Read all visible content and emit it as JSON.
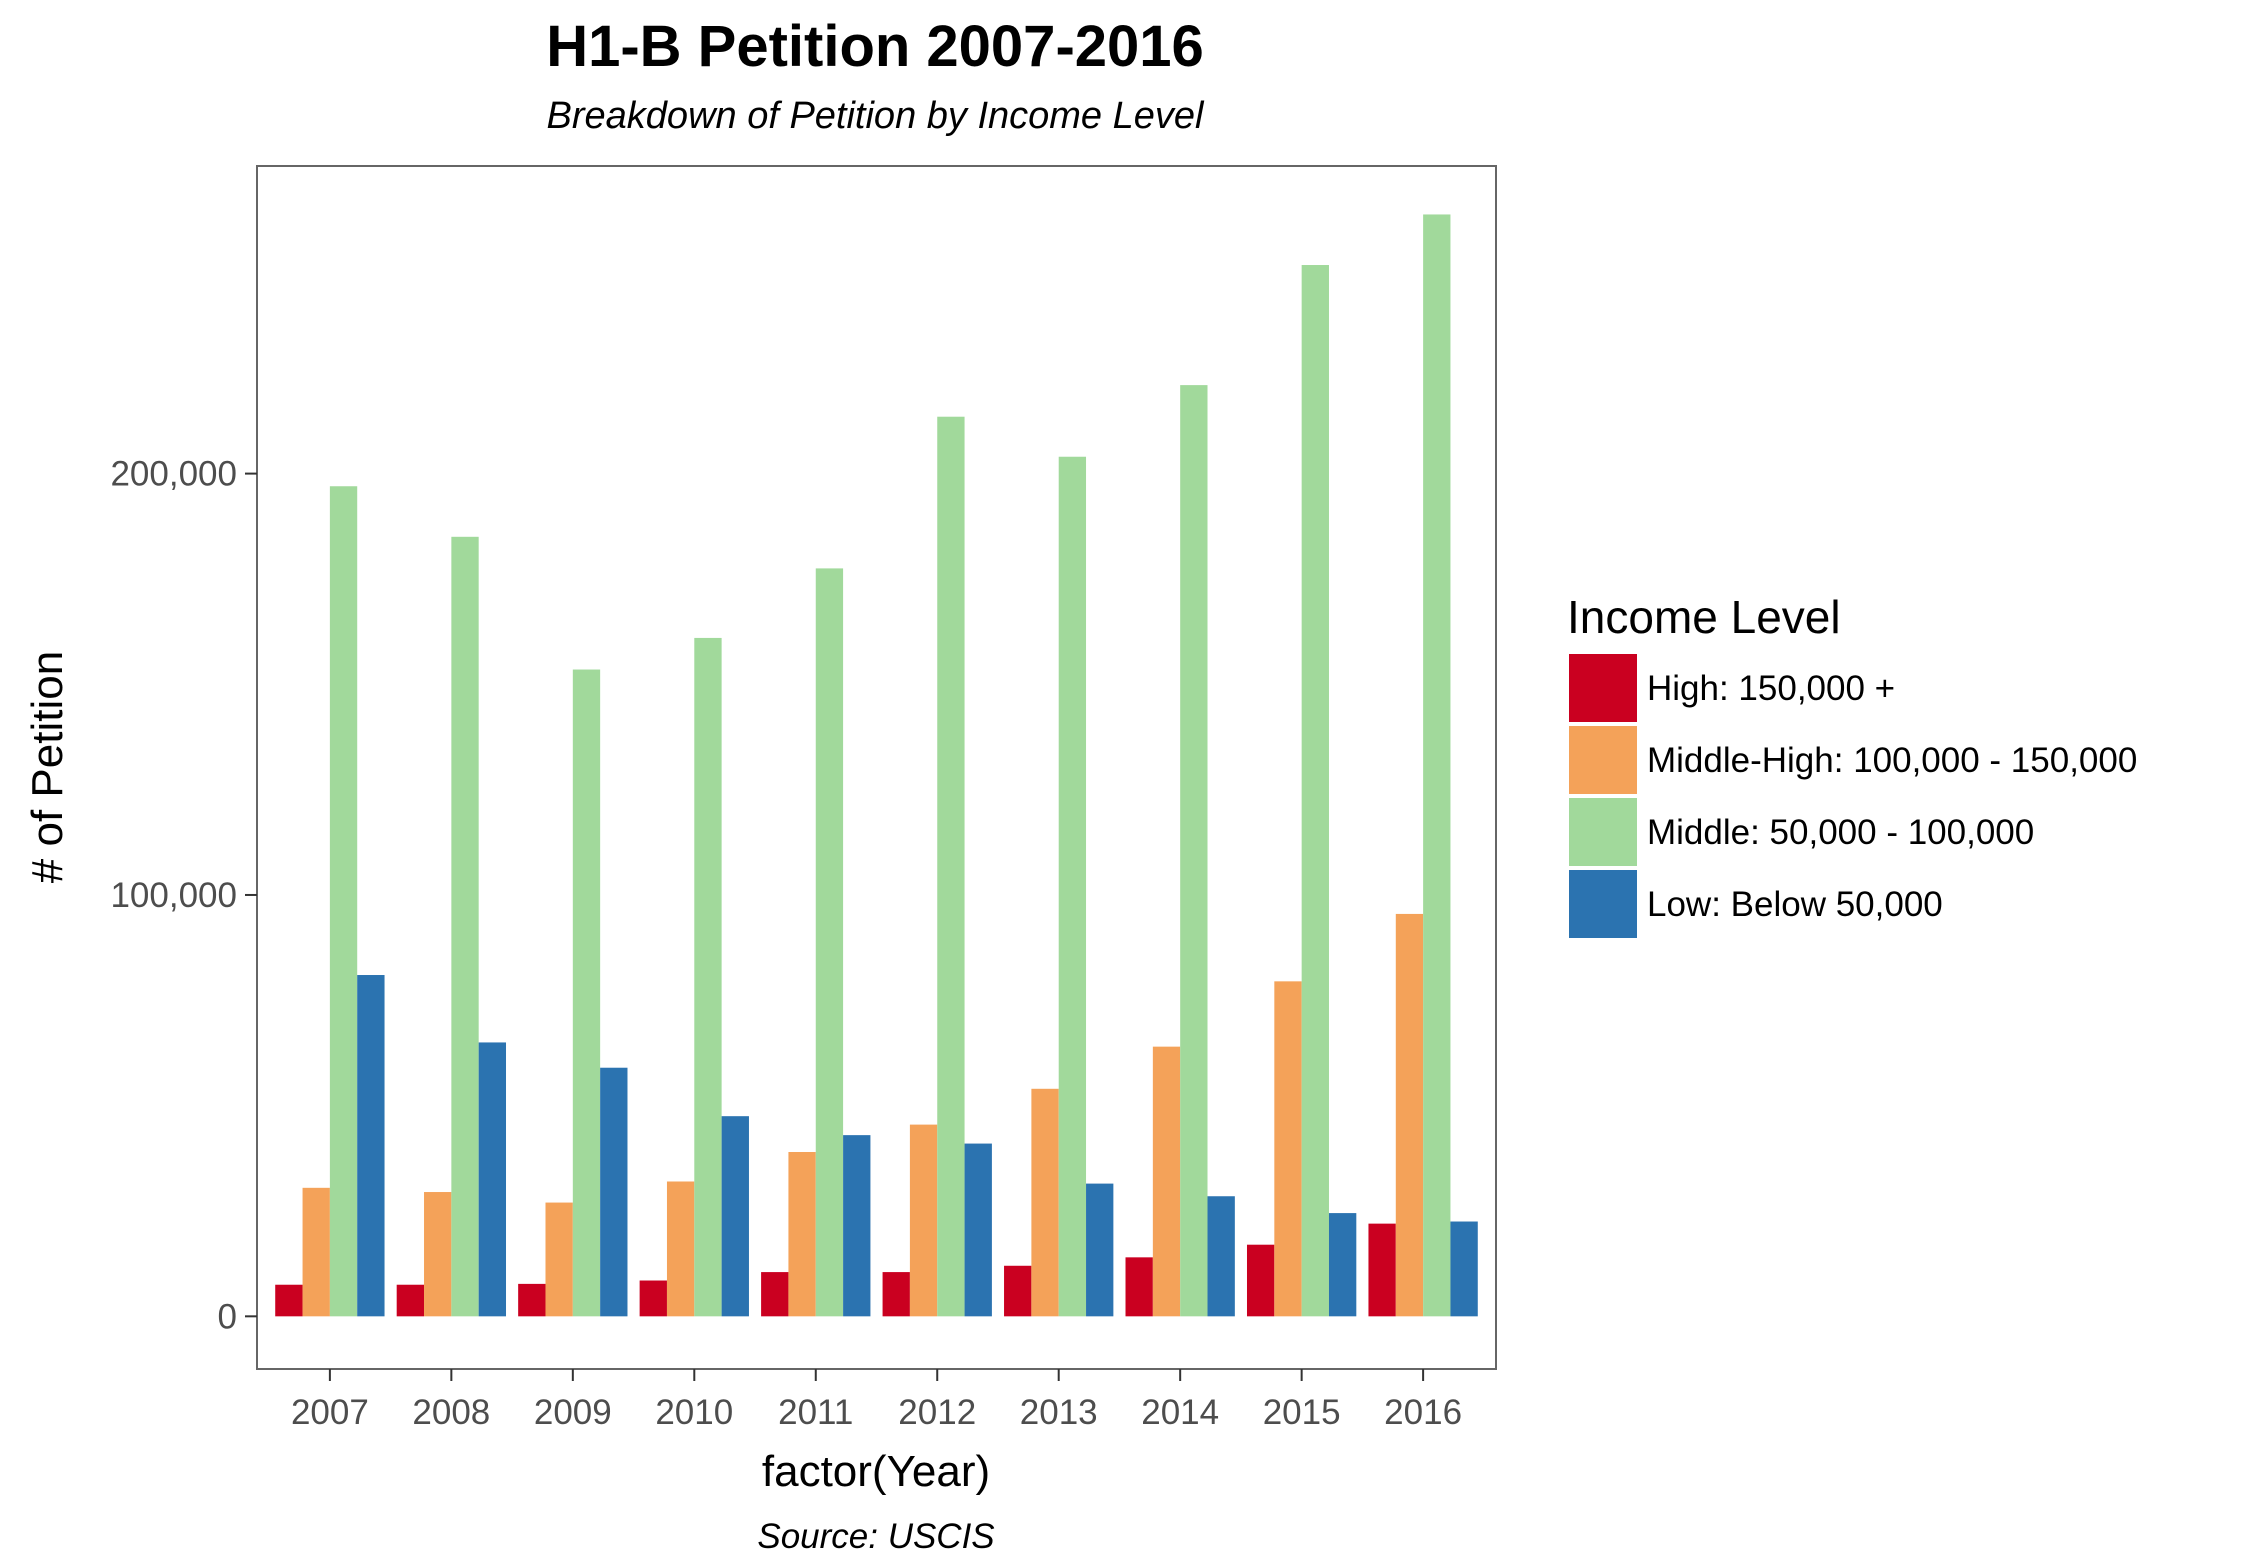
{
  "chart_data": {
    "type": "bar",
    "title": "H1-B Petition 2007-2016",
    "subtitle": "Breakdown of Petition by Income Level",
    "caption": "Source: USCIS",
    "xlabel": "factor(Year)",
    "ylabel": "# of Petition",
    "categories": [
      "2007",
      "2008",
      "2009",
      "2010",
      "2011",
      "2012",
      "2013",
      "2014",
      "2015",
      "2016"
    ],
    "ylim": [
      -12500,
      273000
    ],
    "yticks": [
      {
        "value": 0,
        "label": "0"
      },
      {
        "value": 100000,
        "label": "100,000"
      },
      {
        "value": 200000,
        "label": "200,000"
      }
    ],
    "grid": false,
    "legend": {
      "title": "Income Level",
      "position": "right"
    },
    "series": [
      {
        "name": "High: 150,000 +",
        "color": "#ca0020",
        "values": [
          7500,
          7500,
          7700,
          8500,
          10500,
          10500,
          12000,
          14000,
          17000,
          22000
        ]
      },
      {
        "name": "Middle-High: 100,000 - 150,000",
        "color": "#f4a259",
        "values": [
          30500,
          29500,
          27000,
          32000,
          39000,
          45500,
          54000,
          64000,
          79500,
          95500
        ]
      },
      {
        "name": "Middle: 50,000 - 100,000",
        "color": "#a1d99b",
        "values": [
          197000,
          185000,
          153500,
          161000,
          177500,
          213500,
          204000,
          221000,
          249500,
          261500
        ]
      },
      {
        "name": "Low: Below 50,000",
        "color": "#2b73b0",
        "values": [
          81000,
          65000,
          59000,
          47500,
          43000,
          41000,
          31500,
          28500,
          24500,
          22500
        ]
      }
    ]
  }
}
